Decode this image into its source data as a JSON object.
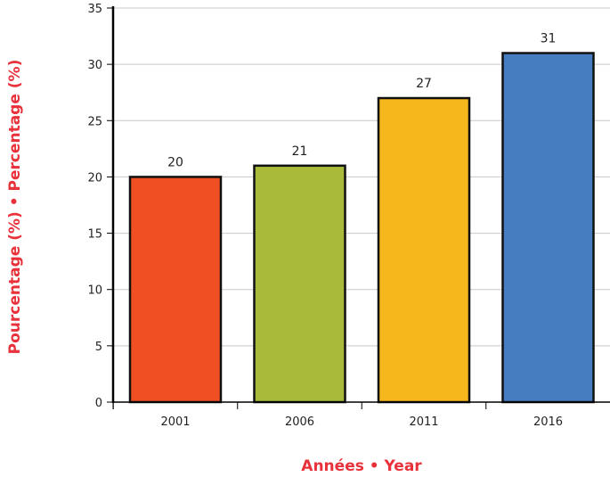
{
  "colors": {
    "title": "#e8313a",
    "grid": "#c8c8c8",
    "axis": "#000000",
    "bar_outline": "#111111"
  },
  "chart_data": {
    "type": "bar",
    "title": "",
    "xlabel": "Années • Year",
    "ylabel": "Pourcentage (%) • Percentage (%)",
    "categories": [
      "2001",
      "2006",
      "2011",
      "2016"
    ],
    "values": [
      20,
      21,
      27,
      31
    ],
    "bar_colors": [
      "#f04e23",
      "#a9ba3b",
      "#f5b71c",
      "#457dc0"
    ],
    "data_labels": [
      "20",
      "21",
      "27",
      "31"
    ],
    "ylim": [
      0,
      35
    ],
    "yticks": [
      0,
      5,
      10,
      15,
      20,
      25,
      30,
      35
    ],
    "grid": true
  }
}
